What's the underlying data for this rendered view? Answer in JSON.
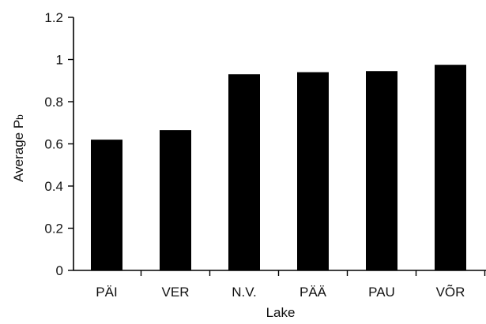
{
  "chart_data": {
    "type": "bar",
    "categories": [
      "PÄI",
      "VER",
      "N.V.",
      "PÄÄ",
      "PAU",
      "VÕR"
    ],
    "values": [
      0.62,
      0.665,
      0.93,
      0.94,
      0.945,
      0.975
    ],
    "title": "",
    "xlabel": "Lake",
    "ylabel_main": "Average P",
    "ylabel_sub": "b",
    "ylim": [
      0,
      1.2
    ],
    "yticks": [
      0,
      0.2,
      0.4,
      0.6,
      0.8,
      1,
      1.2
    ],
    "ytick_labels": [
      "0",
      "0.2",
      "0.4",
      "0.6",
      "0.8",
      "1",
      "1.2"
    ],
    "grid": false,
    "bar_color": "#000000",
    "axis_color": "#000000"
  }
}
